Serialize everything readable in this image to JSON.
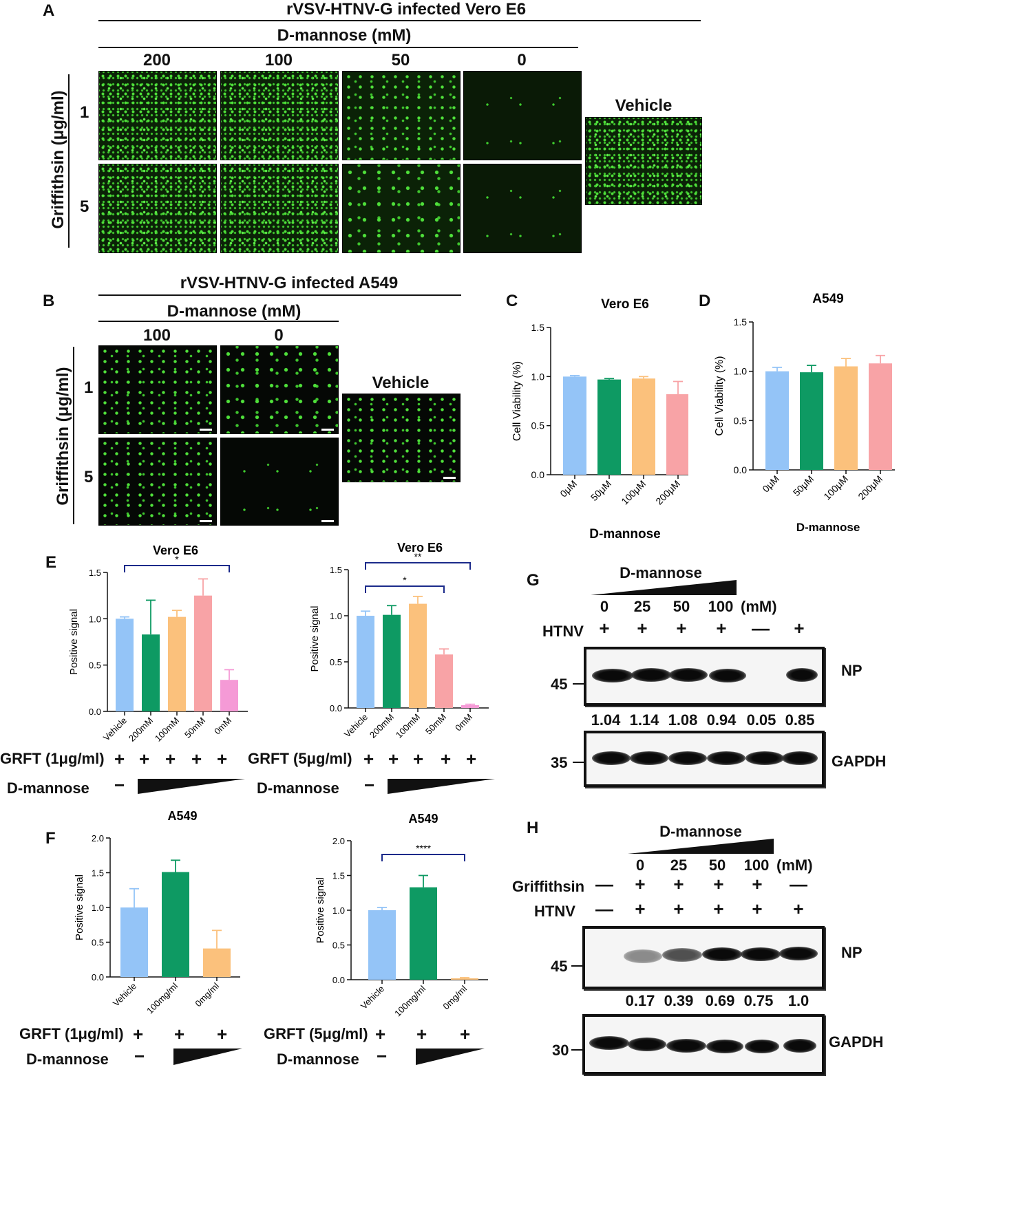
{
  "panelA": {
    "letter": "A",
    "title": "rVSV-HTNV-G infected Vero E6",
    "dmannose_label": "D-mannose (mM)",
    "concentrations": [
      "200",
      "100",
      "50",
      "0"
    ],
    "ylabel": "Griffithsin (μg/ml)",
    "rows": [
      "1",
      "5"
    ],
    "vehicle": "Vehicle"
  },
  "panelB": {
    "letter": "B",
    "title": "rVSV-HTNV-G infected A549",
    "dmannose_label": "D-mannose (mM)",
    "concentrations": [
      "100",
      "0"
    ],
    "ylabel": "Griffithsin (μg/ml)",
    "rows": [
      "1",
      "5"
    ],
    "vehicle": "Vehicle"
  },
  "panelC": {
    "letter": "C"
  },
  "panelD": {
    "letter": "D"
  },
  "panelE": {
    "letter": "E",
    "left_grft": "GRFT (1μg/ml)",
    "right_grft": "GRFT (5μg/ml)",
    "dmannose": "D-mannose",
    "plus": "+",
    "minus": "−"
  },
  "panelF": {
    "letter": "F",
    "left_grft": "GRFT (1μg/ml)",
    "right_grft": "GRFT (5μg/ml)",
    "dmannose": "D-mannose",
    "plus": "+",
    "minus": "−"
  },
  "panelG": {
    "letter": "G",
    "dmannose": "D-mannose",
    "concentrations": [
      "0",
      "25",
      "50",
      "100"
    ],
    "unit": "(mM)",
    "htnv_label": "HTNV",
    "htnv_marks": [
      "+",
      "+",
      "+",
      "+",
      "—",
      "+"
    ],
    "np_label": "NP",
    "gapdh_label": "GAPDH",
    "mw_top": "45",
    "mw_bottom": "35",
    "quant": [
      "1.04",
      "1.14",
      "1.08",
      "0.94",
      "0.05",
      "0.85"
    ]
  },
  "panelH": {
    "letter": "H",
    "dmannose": "D-mannose",
    "concentrations": [
      "0",
      "25",
      "50",
      "100"
    ],
    "unit": "(mM)",
    "griffithsin_label": "Griffithsin",
    "griffithsin_marks": [
      "—",
      "+",
      "+",
      "+",
      "+",
      "—"
    ],
    "htnv_label": "HTNV",
    "htnv_marks": [
      "—",
      "+",
      "+",
      "+",
      "+",
      "+"
    ],
    "np_label": "NP",
    "gapdh_label": "GAPDH",
    "mw_top": "45",
    "mw_bottom": "30",
    "quant": [
      "0.17",
      "0.39",
      "0.69",
      "0.75",
      "1.0"
    ]
  },
  "chart_data": [
    {
      "id": "C",
      "type": "bar",
      "title": "Vero E6",
      "xlabel": "D-mannose",
      "ylabel": "Cell Viability (%)",
      "categories": [
        "0μM",
        "50μM",
        "100μM",
        "200μM"
      ],
      "values": [
        1.0,
        0.97,
        0.98,
        0.82
      ],
      "errors": [
        0.01,
        0.01,
        0.02,
        0.13
      ],
      "colors": [
        "#94c4f7",
        "#0e9a63",
        "#fbc17c",
        "#f8a3a6"
      ],
      "ylim": [
        0,
        1.5
      ],
      "yticks": [
        "0.0",
        "0.5",
        "1.0",
        "1.5"
      ]
    },
    {
      "id": "D",
      "type": "bar",
      "title": "A549",
      "xlabel": "D-mannose",
      "ylabel": "Cell Viability (%)",
      "categories": [
        "0μM",
        "50μM",
        "100μM",
        "200μM"
      ],
      "values": [
        1.0,
        0.99,
        1.05,
        1.08
      ],
      "errors": [
        0.04,
        0.07,
        0.08,
        0.08
      ],
      "colors": [
        "#94c4f7",
        "#0e9a63",
        "#fbc17c",
        "#f8a3a6"
      ],
      "ylim": [
        0,
        1.5
      ],
      "yticks": [
        "0.0",
        "0.5",
        "1.0",
        "1.5"
      ]
    },
    {
      "id": "E1",
      "type": "bar",
      "title": "Vero E6",
      "xlabel": "",
      "ylabel": "Positive signal",
      "categories": [
        "Vehicle",
        "200mM",
        "100mM",
        "50mM",
        "0mM"
      ],
      "values": [
        1.0,
        0.83,
        1.02,
        1.25,
        0.34
      ],
      "errors": [
        0.02,
        0.37,
        0.07,
        0.18,
        0.11
      ],
      "colors": [
        "#94c4f7",
        "#0e9a63",
        "#fbc17c",
        "#f8a3a6",
        "#f59ad6"
      ],
      "ylim": [
        0,
        1.5
      ],
      "yticks": [
        "0.0",
        "0.5",
        "1.0",
        "1.5"
      ],
      "significance": [
        {
          "from": 0,
          "to": 4,
          "label": "*"
        }
      ]
    },
    {
      "id": "E2",
      "type": "bar",
      "title": "Vero E6",
      "xlabel": "",
      "ylabel": "Positive signal",
      "categories": [
        "Vehicle",
        "200mM",
        "100mM",
        "50mM",
        "0mM"
      ],
      "values": [
        1.0,
        1.01,
        1.13,
        0.58,
        0.03
      ],
      "errors": [
        0.05,
        0.1,
        0.08,
        0.06,
        0.01
      ],
      "colors": [
        "#94c4f7",
        "#0e9a63",
        "#fbc17c",
        "#f8a3a6",
        "#f59ad6"
      ],
      "ylim": [
        0,
        1.5
      ],
      "yticks": [
        "0.0",
        "0.5",
        "1.0",
        "1.5"
      ],
      "significance": [
        {
          "from": 0,
          "to": 4,
          "label": "**"
        },
        {
          "from": 0,
          "to": 3,
          "label": "*"
        }
      ]
    },
    {
      "id": "F1",
      "type": "bar",
      "title": "A549",
      "xlabel": "",
      "ylabel": "Positive signal",
      "categories": [
        "Vehicle",
        "100mg/ml",
        "0mg/ml"
      ],
      "values": [
        1.0,
        1.51,
        0.41
      ],
      "errors": [
        0.27,
        0.17,
        0.26
      ],
      "colors": [
        "#94c4f7",
        "#0e9a63",
        "#fbc17c"
      ],
      "ylim": [
        0,
        2.0
      ],
      "yticks": [
        "0.0",
        "0.5",
        "1.0",
        "1.5",
        "2.0"
      ]
    },
    {
      "id": "F2",
      "type": "bar",
      "title": "A549",
      "xlabel": "",
      "ylabel": "Positive signal",
      "categories": [
        "Vehicle",
        "100mg/ml",
        "0mg/ml"
      ],
      "values": [
        1.0,
        1.33,
        0.02
      ],
      "errors": [
        0.04,
        0.17,
        0.01
      ],
      "colors": [
        "#94c4f7",
        "#0e9a63",
        "#fbc17c"
      ],
      "ylim": [
        0,
        2.0
      ],
      "yticks": [
        "0.0",
        "0.5",
        "1.0",
        "1.5",
        "2.0"
      ],
      "significance": [
        {
          "from": 0,
          "to": 2,
          "label": "****"
        }
      ]
    }
  ]
}
